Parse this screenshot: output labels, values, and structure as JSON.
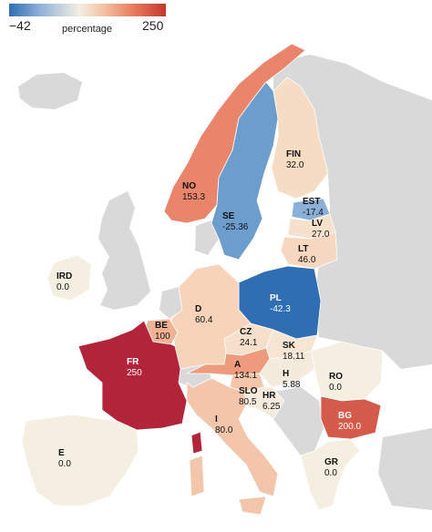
{
  "legend": {
    "min_label": "−42",
    "max_label": "250",
    "title": "percentage",
    "colors": {
      "low": "#2f6eb3",
      "mid": "#f3efe2",
      "high": "#c0392b"
    }
  },
  "colors": {
    "no_data": "#d9d9d9",
    "sea": "#ffffff"
  },
  "countries": [
    {
      "code": "NO",
      "value": "153.3",
      "fill": "#e8856a"
    },
    {
      "code": "SE",
      "value": "-25.36",
      "fill": "#6d9dcc"
    },
    {
      "code": "FIN",
      "value": "32.0",
      "fill": "#f5dcc3"
    },
    {
      "code": "EST",
      "value": "-17.4",
      "fill": "#8ab0d8"
    },
    {
      "code": "LV",
      "value": "27.0",
      "fill": "#f6e2cc"
    },
    {
      "code": "LT",
      "value": "46.0",
      "fill": "#f5d8bf"
    },
    {
      "code": "IRD",
      "value": "0.0",
      "fill": "#f4efe1"
    },
    {
      "code": "PL",
      "value": "-42.3",
      "fill": "#2f6eb3"
    },
    {
      "code": "D",
      "value": "60.4",
      "fill": "#f7d3b9"
    },
    {
      "code": "BE",
      "value": "100",
      "fill": "#efb294"
    },
    {
      "code": "CZ",
      "value": "24.1",
      "fill": "#f6e0cb"
    },
    {
      "code": "SK",
      "value": "18.11",
      "fill": "#f5e5d2"
    },
    {
      "code": "FR",
      "value": "250",
      "fill": "#b2243a"
    },
    {
      "code": "A",
      "value": "134.1",
      "fill": "#ec9b7d"
    },
    {
      "code": "H",
      "value": "5.88",
      "fill": "#f4ebdc"
    },
    {
      "code": "RO",
      "value": "0.0",
      "fill": "#f4efe1"
    },
    {
      "code": "SLO",
      "value": "80.5",
      "fill": "#f3c6ab"
    },
    {
      "code": "HR",
      "value": "6.25",
      "fill": "#f4ebdc"
    },
    {
      "code": "I",
      "value": "80.0",
      "fill": "#f3c6ab"
    },
    {
      "code": "BG",
      "value": "200.0",
      "fill": "#d45b4a"
    },
    {
      "code": "E",
      "value": "0.0",
      "fill": "#f4efe1"
    },
    {
      "code": "GR",
      "value": "0.0",
      "fill": "#f4efe1"
    }
  ]
}
